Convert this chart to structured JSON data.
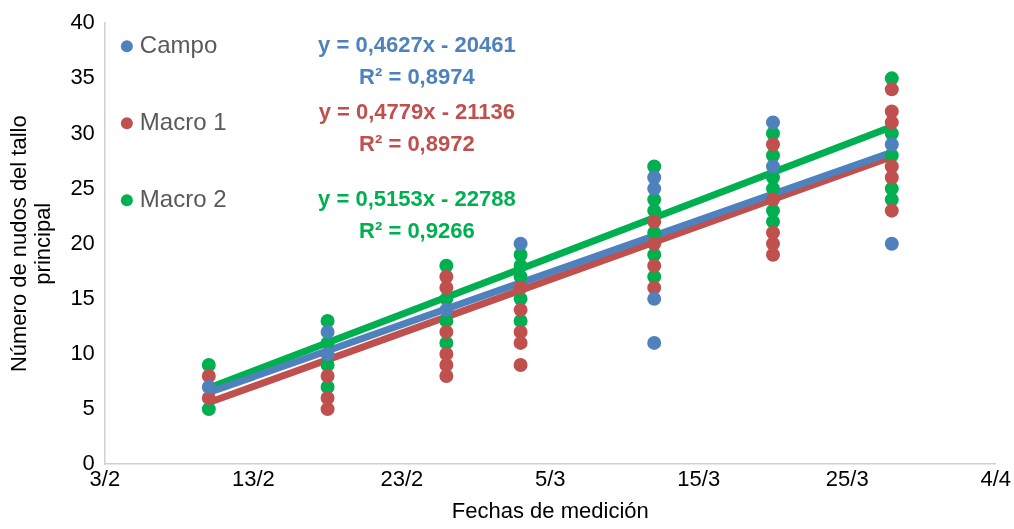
{
  "chart_data": {
    "type": "scatter",
    "xlabel": "Fechas de medición",
    "ylabel": "Número de nudos del tallo principal",
    "xlim": [
      "--02-03",
      "--04-04"
    ],
    "xticks": [
      {
        "value": "--02-03",
        "label": "3/2"
      },
      {
        "value": "--02-13",
        "label": "13/2"
      },
      {
        "value": "--02-23",
        "label": "23/2"
      },
      {
        "value": "--03-05",
        "label": "5/3"
      },
      {
        "value": "--03-15",
        "label": "15/3"
      },
      {
        "value": "--03-25",
        "label": "25/3"
      },
      {
        "value": "--04-04",
        "label": "4/4"
      }
    ],
    "ylim": [
      0,
      40
    ],
    "yticks": [
      0,
      5,
      10,
      15,
      20,
      25,
      30,
      35,
      40
    ],
    "grid": false,
    "legend": "top left",
    "marker": "circle",
    "annotations": [
      "y = 0,4627x - 20461",
      "R² = 0,8974",
      "y = 0,4779x - 21136",
      "R² = 0,8972",
      "y = 0,5153x - 22788",
      "R² = 0,9266"
    ],
    "series": [
      {
        "name": "Campo",
        "color": "#4f81bd",
        "x": [
          "--02-10",
          "--02-18",
          "--02-18",
          "--02-26",
          "--03-03",
          "--03-12",
          "--03-12",
          "--03-12",
          "--03-12",
          "--03-20",
          "--03-20",
          "--03-28",
          "--03-28"
        ],
        "values": [
          7,
          12,
          10,
          14,
          20,
          26,
          25,
          15,
          11,
          31,
          27,
          20,
          29
        ]
      },
      {
        "name": "Macro 1",
        "color": "#c0504d",
        "x": [
          "--02-10",
          "--02-10",
          "--02-18",
          "--02-18",
          "--02-18",
          "--02-26",
          "--02-26",
          "--02-26",
          "--02-26",
          "--02-26",
          "--02-26",
          "--03-03",
          "--03-03",
          "--03-03",
          "--03-03",
          "--03-03",
          "--03-12",
          "--03-12",
          "--03-12",
          "--03-12",
          "--03-20",
          "--03-20",
          "--03-20",
          "--03-20",
          "--03-20",
          "--03-28",
          "--03-28",
          "--03-28",
          "--03-28",
          "--03-28",
          "--03-28"
        ],
        "values": [
          6,
          8,
          5,
          6,
          8,
          8,
          9,
          10,
          12,
          16,
          17,
          9,
          11,
          12,
          14,
          16,
          16,
          18,
          20,
          22,
          19,
          20,
          21,
          24,
          29,
          34,
          32,
          31,
          27,
          26,
          23
        ]
      },
      {
        "name": "Macro 2",
        "color": "#00b050",
        "x": [
          "--02-10",
          "--02-10",
          "--02-18",
          "--02-18",
          "--02-18",
          "--02-18",
          "--02-26",
          "--02-26",
          "--02-26",
          "--02-26",
          "--03-03",
          "--03-03",
          "--03-03",
          "--03-03",
          "--03-03",
          "--03-12",
          "--03-12",
          "--03-12",
          "--03-12",
          "--03-12",
          "--03-12",
          "--03-20",
          "--03-20",
          "--03-20",
          "--03-20",
          "--03-20",
          "--03-20",
          "--03-28",
          "--03-28",
          "--03-28",
          "--03-28",
          "--03-28"
        ],
        "values": [
          5,
          9,
          13,
          11,
          9,
          7,
          18,
          15,
          13,
          11,
          19,
          18,
          17,
          15,
          13,
          27,
          24,
          23,
          21,
          19,
          17,
          30,
          28,
          26,
          25,
          23,
          22,
          35,
          30,
          28,
          25,
          24
        ]
      },
      {
        "type": "line",
        "color": "#4f81bd",
        "marker": "none",
        "x": [
          "--02-10",
          "--03-28"
        ],
        "values": [
          6.5,
          28.3
        ]
      },
      {
        "type": "line",
        "color": "#c0504d",
        "marker": "none",
        "x": [
          "--02-10",
          "--03-28"
        ],
        "values": [
          5.6,
          27.9
        ]
      },
      {
        "type": "line",
        "color": "#00b050",
        "marker": "none",
        "x": [
          "--02-10",
          "--03-28"
        ],
        "values": [
          6.9,
          30.6
        ]
      }
    ]
  }
}
